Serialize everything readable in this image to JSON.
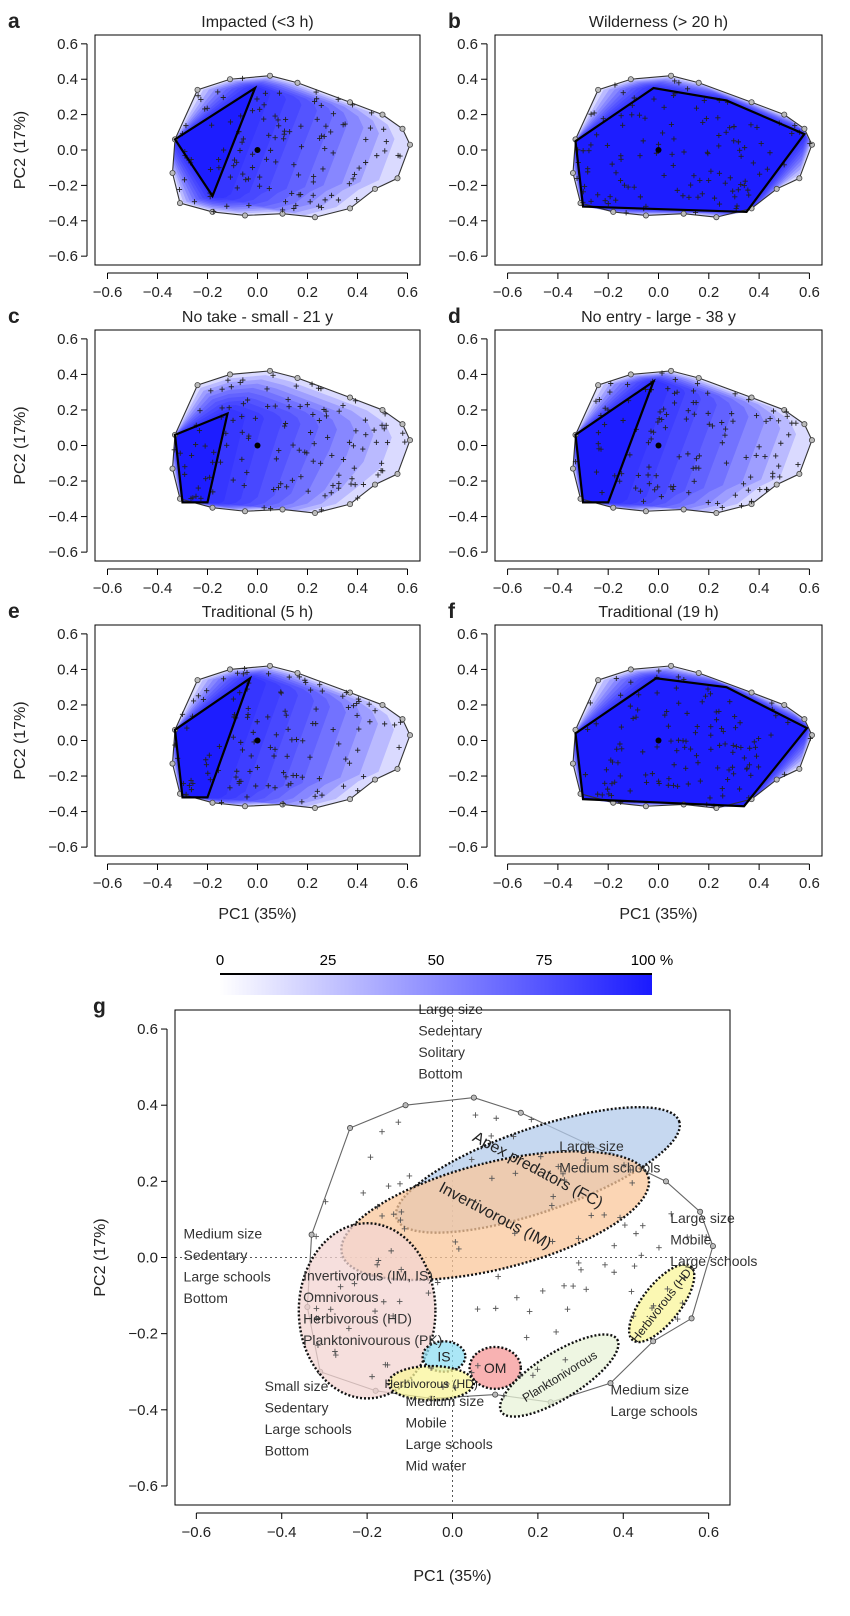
{
  "colorbar": {
    "ticks": [
      "0",
      "25",
      "50",
      "75",
      "100 %"
    ],
    "color_start": "#ffffff",
    "color_end": "#1a1aff"
  },
  "colors": {
    "fill": "#1a1aff",
    "outline": "#000000",
    "hull": "#555555",
    "crosshair": "#555555"
  },
  "chart_data": [
    {
      "panel_letter": "a",
      "type": "scatter",
      "title": "Impacted (<3 h)",
      "ylabel": "PC2 (17%)",
      "xlabel": "",
      "xlim": [
        -0.65,
        0.65
      ],
      "ylim": [
        -0.65,
        0.65
      ],
      "xticks": [
        "−0.6",
        "−0.4",
        "−0.2",
        "0.0",
        "0.2",
        "0.4",
        "0.6"
      ],
      "yticks": [
        "0.6",
        "0.4",
        "0.2",
        "0.0",
        "−0.2",
        "−0.4",
        "−0.6"
      ],
      "outline_polygon": [
        [
          -0.33,
          0.06
        ],
        [
          -0.01,
          0.35
        ],
        [
          -0.18,
          -0.26
        ]
      ],
      "centroid": [
        0.0,
        0.0
      ]
    },
    {
      "panel_letter": "b",
      "type": "scatter",
      "title": "Wilderness (> 20 h)",
      "ylabel": "",
      "xlabel": "",
      "xlim": [
        -0.65,
        0.65
      ],
      "ylim": [
        -0.65,
        0.65
      ],
      "xticks": [
        "−0.6",
        "−0.4",
        "−0.2",
        "0.0",
        "0.2",
        "0.4",
        "0.6"
      ],
      "yticks": [
        "0.6",
        "0.4",
        "0.2",
        "0.0",
        "−0.2",
        "−0.4",
        "−0.6"
      ],
      "outline_polygon": [
        [
          -0.33,
          0.05
        ],
        [
          -0.02,
          0.35
        ],
        [
          0.27,
          0.28
        ],
        [
          0.58,
          0.09
        ],
        [
          0.35,
          -0.35
        ],
        [
          -0.3,
          -0.32
        ]
      ],
      "centroid": [
        0.0,
        0.0
      ]
    },
    {
      "panel_letter": "c",
      "type": "scatter",
      "title": "No take - small - 21 y",
      "ylabel": "PC2 (17%)",
      "xlabel": "",
      "xlim": [
        -0.65,
        0.65
      ],
      "ylim": [
        -0.65,
        0.65
      ],
      "xticks": [
        "−0.6",
        "−0.4",
        "−0.2",
        "0.0",
        "0.2",
        "0.4",
        "0.6"
      ],
      "yticks": [
        "0.6",
        "0.4",
        "0.2",
        "0.0",
        "−0.2",
        "−0.4",
        "−0.6"
      ],
      "outline_polygon": [
        [
          -0.33,
          0.06
        ],
        [
          -0.12,
          0.18
        ],
        [
          -0.2,
          -0.32
        ],
        [
          -0.3,
          -0.32
        ]
      ],
      "centroid": [
        0.0,
        0.0
      ]
    },
    {
      "panel_letter": "d",
      "type": "scatter",
      "title": "No entry - large - 38 y",
      "ylabel": "",
      "xlabel": "",
      "xlim": [
        -0.65,
        0.65
      ],
      "ylim": [
        -0.65,
        0.65
      ],
      "xticks": [
        "−0.6",
        "−0.4",
        "−0.2",
        "0.0",
        "0.2",
        "0.4",
        "0.6"
      ],
      "yticks": [
        "0.6",
        "0.4",
        "0.2",
        "0.0",
        "−0.2",
        "−0.4",
        "−0.6"
      ],
      "outline_polygon": [
        [
          -0.33,
          0.06
        ],
        [
          -0.02,
          0.36
        ],
        [
          -0.2,
          -0.32
        ],
        [
          -0.3,
          -0.32
        ]
      ],
      "centroid": [
        0.0,
        0.0
      ]
    },
    {
      "panel_letter": "e",
      "type": "scatter",
      "title": "Traditional (5 h)",
      "ylabel": "PC2 (17%)",
      "xlabel": "PC1 (35%)",
      "xlim": [
        -0.65,
        0.65
      ],
      "ylim": [
        -0.65,
        0.65
      ],
      "xticks": [
        "−0.6",
        "−0.4",
        "−0.2",
        "0.0",
        "0.2",
        "0.4",
        "0.6"
      ],
      "yticks": [
        "0.6",
        "0.4",
        "0.2",
        "0.0",
        "−0.2",
        "−0.4",
        "−0.6"
      ],
      "outline_polygon": [
        [
          -0.33,
          0.06
        ],
        [
          -0.03,
          0.35
        ],
        [
          -0.2,
          -0.32
        ],
        [
          -0.3,
          -0.32
        ]
      ],
      "centroid": [
        0.0,
        0.0
      ]
    },
    {
      "panel_letter": "f",
      "type": "scatter",
      "title": "Traditional (19 h)",
      "ylabel": "",
      "xlabel": "PC1 (35%)",
      "xlim": [
        -0.65,
        0.65
      ],
      "ylim": [
        -0.65,
        0.65
      ],
      "xticks": [
        "−0.6",
        "−0.4",
        "−0.2",
        "0.0",
        "0.2",
        "0.4",
        "0.6"
      ],
      "yticks": [
        "0.6",
        "0.4",
        "0.2",
        "0.0",
        "−0.2",
        "−0.4",
        "−0.6"
      ],
      "outline_polygon": [
        [
          -0.33,
          0.04
        ],
        [
          -0.01,
          0.35
        ],
        [
          0.27,
          0.3
        ],
        [
          0.59,
          0.07
        ],
        [
          0.34,
          -0.37
        ],
        [
          -0.3,
          -0.33
        ]
      ],
      "centroid": [
        0.0,
        0.0
      ]
    },
    {
      "panel_letter": "g",
      "type": "scatter",
      "title": "",
      "ylabel": "PC2 (17%)",
      "xlabel": "PC1 (35%)",
      "xlim": [
        -0.65,
        0.65
      ],
      "ylim": [
        -0.65,
        0.65
      ],
      "xticks": [
        "−0.6",
        "−0.4",
        "−0.2",
        "0.0",
        "0.2",
        "0.4",
        "0.6"
      ],
      "yticks": [
        "0.6",
        "0.4",
        "0.2",
        "0.0",
        "−0.2",
        "−0.4",
        "−0.6"
      ],
      "groups": [
        {
          "label": "Apex predators (FC)",
          "center": [
            0.2,
            0.23
          ],
          "radii": [
            0.35,
            0.11
          ],
          "angle": -19,
          "color": "#b3cbeb"
        },
        {
          "label": "Invertivorous (IM)",
          "center": [
            0.1,
            0.11
          ],
          "radii": [
            0.37,
            0.14
          ],
          "angle": -14,
          "color": "#f9c79b"
        },
        {
          "label": "",
          "center": [
            -0.2,
            -0.14
          ],
          "radii": [
            0.16,
            0.23
          ],
          "angle": 0,
          "color": "#f3d4d2"
        },
        {
          "label": "Herbivorous (HD)",
          "center": [
            0.49,
            -0.12
          ],
          "radii": [
            0.11,
            0.05
          ],
          "angle": -52,
          "color": "#faf59a"
        },
        {
          "label": "IS",
          "center": [
            -0.02,
            -0.26
          ],
          "radii": [
            0.05,
            0.04
          ],
          "angle": 0,
          "color": "#8fdff3"
        },
        {
          "label": "OM",
          "center": [
            0.1,
            -0.29
          ],
          "radii": [
            0.06,
            0.055
          ],
          "angle": 0,
          "color": "#f59898"
        },
        {
          "label": "Herbivorous (HD)",
          "center": [
            -0.05,
            -0.33
          ],
          "radii": [
            0.1,
            0.045
          ],
          "angle": 0,
          "color": "#faf59a"
        },
        {
          "label": "Planktonivorous",
          "center": [
            0.25,
            -0.31
          ],
          "radii": [
            0.16,
            0.06
          ],
          "angle": -32,
          "color": "#e8f3d8"
        }
      ],
      "annotations": [
        {
          "lines": [
            "Large size",
            "Sedentary",
            "Solitary",
            "Bottom"
          ],
          "anchor": [
            -0.08,
            0.64
          ]
        },
        {
          "lines": [
            "Large size",
            "Medium schools"
          ],
          "anchor": [
            0.25,
            0.28
          ]
        },
        {
          "lines": [
            "Large size",
            "Mobile",
            "Large schools"
          ],
          "anchor": [
            0.51,
            0.09
          ]
        },
        {
          "lines": [
            "Medium size",
            "Sedentary",
            "Large schools",
            "Bottom"
          ],
          "anchor": [
            -0.63,
            0.05
          ]
        },
        {
          "lines": [
            "Invertivorous (IM, IS)",
            "Omnivorous",
            "Herbivorous (HD)",
            "Planktonivourous (PK)"
          ],
          "anchor": [
            -0.35,
            -0.06
          ]
        },
        {
          "lines": [
            "Small size",
            "Sedentary",
            "Large schools",
            "Bottom"
          ],
          "anchor": [
            -0.44,
            -0.35
          ]
        },
        {
          "lines": [
            "Medium size",
            "Mobile",
            "Large schools",
            "Mid water"
          ],
          "anchor": [
            -0.11,
            -0.39
          ]
        },
        {
          "lines": [
            "Medium size",
            "Large schools"
          ],
          "anchor": [
            0.37,
            -0.36
          ]
        }
      ]
    }
  ]
}
